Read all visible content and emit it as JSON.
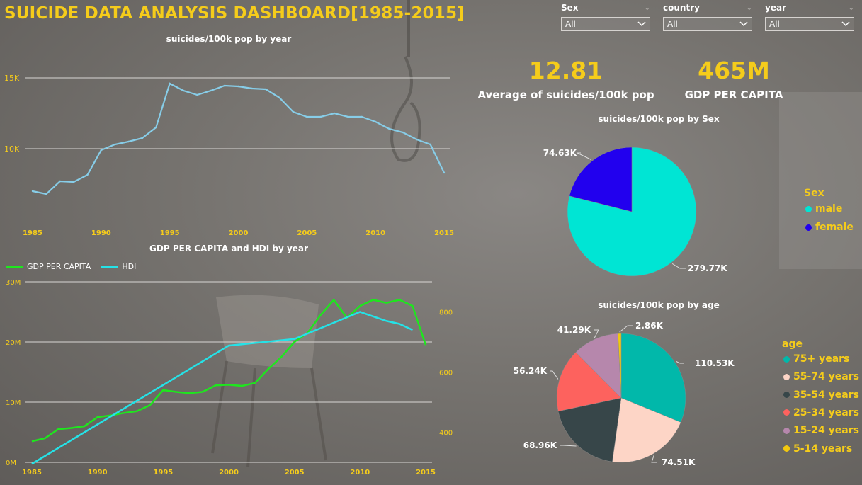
{
  "dashboard": {
    "title": "SUICIDE DATA ANALYSIS DASHBOARD[1985-2015]"
  },
  "filters": [
    {
      "label": "Sex",
      "value": "All"
    },
    {
      "label": "country",
      "value": "All"
    },
    {
      "label": "year",
      "value": "All"
    }
  ],
  "kpis": {
    "avg_suicides": {
      "value": "12.81",
      "label": "Average of suicides/100k pop"
    },
    "gdp": {
      "value": "465M",
      "label": "GDP PER CAPITA"
    }
  },
  "colors": {
    "accent": "#f5cc1b",
    "line_suicides": "#87cde8",
    "line_gdp": "#1ee61e",
    "line_hdi": "#25e2e7",
    "male": "#00e5d4",
    "female": "#2200ee"
  },
  "chart_data": [
    {
      "id": "suicides-by-year",
      "type": "line",
      "title": "suicides/100k pop by year",
      "xlabel": "",
      "ylabel": "",
      "x": [
        1985,
        1986,
        1987,
        1988,
        1989,
        1990,
        1991,
        1992,
        1993,
        1994,
        1995,
        1996,
        1997,
        1998,
        1999,
        2000,
        2001,
        2002,
        2003,
        2004,
        2005,
        2006,
        2007,
        2008,
        2009,
        2010,
        2011,
        2012,
        2013,
        2014,
        2015
      ],
      "values": [
        7000,
        6800,
        7700,
        7650,
        8150,
        9900,
        10300,
        10500,
        10750,
        11500,
        14600,
        14100,
        13800,
        14100,
        14450,
        14400,
        14250,
        14200,
        13600,
        12600,
        12250,
        12250,
        12500,
        12250,
        12250,
        11900,
        11400,
        11150,
        10650,
        10300,
        8300
      ],
      "xticks": [
        "1985",
        "1990",
        "1995",
        "2000",
        "2005",
        "2010",
        "2015"
      ],
      "yticks": [
        {
          "v": 10000,
          "label": "10K"
        },
        {
          "v": 15000,
          "label": "15K"
        }
      ],
      "ylim": [
        5000,
        17000
      ],
      "grid": true
    },
    {
      "id": "gdp-hdi-by-year",
      "type": "line",
      "title": "GDP PER CAPITA and HDI by year",
      "legend": [
        "GDP PER CAPITA",
        "HDI"
      ],
      "legend_position": "top-left",
      "x": [
        1985,
        1986,
        1987,
        1988,
        1989,
        1990,
        1991,
        1992,
        1993,
        1994,
        1995,
        1996,
        1997,
        1998,
        1999,
        2000,
        2001,
        2002,
        2003,
        2004,
        2005,
        2006,
        2007,
        2008,
        2009,
        2010,
        2011,
        2012,
        2013,
        2014,
        2015
      ],
      "series": [
        {
          "name": "GDP PER CAPITA",
          "axis": "left",
          "values": [
            3500000,
            4000000,
            5500000,
            5700000,
            6000000,
            7500000,
            7800000,
            8200000,
            8500000,
            9500000,
            12000000,
            11700000,
            11500000,
            11700000,
            12800000,
            12900000,
            12700000,
            13200000,
            15500000,
            17500000,
            20000000,
            21500000,
            24500000,
            27000000,
            24000000,
            26000000,
            27000000,
            26500000,
            27000000,
            26000000,
            19500000
          ]
        },
        {
          "name": "HDI",
          "axis": "right",
          "x": [
            1985,
            2000,
            2005,
            2010,
            2012,
            2013,
            2014
          ],
          "values": [
            295,
            688,
            710,
            800,
            770,
            760,
            740
          ]
        }
      ],
      "xticks": [
        "1985",
        "1990",
        "1995",
        "2000",
        "2005",
        "2010",
        "2015"
      ],
      "yticks_left": [
        {
          "v": 0,
          "label": "0M"
        },
        {
          "v": 10000000,
          "label": "10M"
        },
        {
          "v": 20000000,
          "label": "20M"
        },
        {
          "v": 30000000,
          "label": "30M"
        }
      ],
      "yticks_right": [
        {
          "v": 400,
          "label": "400"
        },
        {
          "v": 600,
          "label": "600"
        },
        {
          "v": 800,
          "label": "800"
        }
      ],
      "ylim_left": [
        0,
        30000000
      ],
      "ylim_right": [
        300,
        900
      ],
      "grid": true
    },
    {
      "id": "suicides-by-sex",
      "type": "pie",
      "title": "suicides/100k pop by Sex",
      "legend_title": "Sex",
      "legend_position": "right",
      "slices": [
        {
          "name": "male",
          "value": 279.77,
          "label": "279.77K",
          "color": "#00e5d4"
        },
        {
          "name": "female",
          "value": 74.63,
          "label": "74.63K",
          "color": "#2200ee"
        }
      ]
    },
    {
      "id": "suicides-by-age",
      "type": "pie",
      "title": "suicides/100k pop by age",
      "legend_title": "age",
      "legend_position": "right",
      "slices": [
        {
          "name": "75+ years",
          "value": 110.53,
          "label": "110.53K",
          "color": "#01b8aa"
        },
        {
          "name": "55-74 years",
          "value": 74.51,
          "label": "74.51K",
          "color": "#fdd5c6"
        },
        {
          "name": "35-54 years",
          "value": 68.96,
          "label": "68.96K",
          "color": "#374649"
        },
        {
          "name": "25-34 years",
          "value": 56.24,
          "label": "56.24K",
          "color": "#fd625e"
        },
        {
          "name": "15-24 years",
          "value": 41.29,
          "label": "41.29K",
          "color": "#b687ac"
        },
        {
          "name": "5-14 years",
          "value": 2.86,
          "label": "2.86K",
          "color": "#f2c80f"
        }
      ]
    }
  ]
}
